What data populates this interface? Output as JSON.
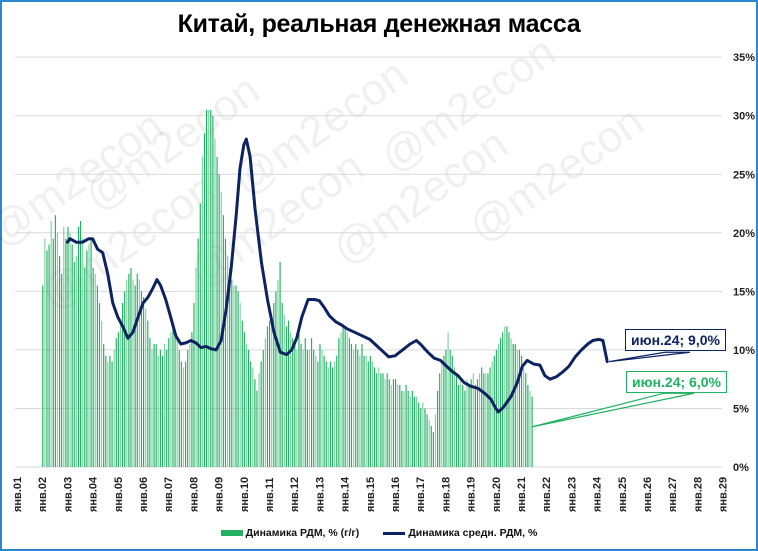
{
  "title": "Китай, реальная денежная масса",
  "watermark": "@m2econ",
  "colors": {
    "bars": "#22b163",
    "bars_light": "#7fd3a2",
    "line": "#0d2261",
    "grid": "#d9d9d9",
    "border": "#2f86cf"
  },
  "legend": {
    "bars_label": "Динамика РДМ, % (г/г)",
    "line_label": "Динамика средн. РДМ, %"
  },
  "callouts": {
    "line": "июн.24; 9,0%",
    "bars": "июн.24; 6,0%"
  },
  "chart_data": {
    "type": "bar+line",
    "title": "Китай, реальная денежная масса",
    "xlabel": "",
    "ylabel": "",
    "ylim": [
      0,
      35
    ],
    "y_ticks": [
      "0%",
      "5%",
      "10%",
      "15%",
      "20%",
      "25%",
      "30%",
      "35%"
    ],
    "x_ticks": [
      "янв.01",
      "янв.02",
      "янв.03",
      "янв.04",
      "янв.05",
      "янв.06",
      "янв.07",
      "янв.08",
      "янв.09",
      "янв.10",
      "янв.11",
      "янв.12",
      "янв.13",
      "янв.14",
      "янв.15",
      "янв.16",
      "янв.17",
      "янв.18",
      "янв.19",
      "янв.20",
      "янв.21",
      "янв.22",
      "янв.23",
      "янв.24",
      "янв.25",
      "янв.26",
      "янв.27",
      "янв.28",
      "янв.29"
    ],
    "grid": true,
    "legend_position": "bottom",
    "annotations": [
      {
        "series": "Динамика средн. РДМ, %",
        "date": "июн.24",
        "value": 9.0
      },
      {
        "series": "Динамика РДМ, % (г/г)",
        "date": "июн.24",
        "value": 6.0
      }
    ],
    "series": [
      {
        "name": "Динамика РДМ, % (г/г)",
        "type": "bar",
        "start": "янв.02",
        "frequency": "monthly",
        "values": [
          15.5,
          19.5,
          18.5,
          19.0,
          21.0,
          19.5,
          21.5,
          20.0,
          18.0,
          16.5,
          20.5,
          19.5,
          20.5,
          20.0,
          19.0,
          17.5,
          18.0,
          20.5,
          21.0,
          19.5,
          17.0,
          18.5,
          19.0,
          19.5,
          17.0,
          16.5,
          15.5,
          14.0,
          12.5,
          10.5,
          9.5,
          9.0,
          9.5,
          9.0,
          10.0,
          11.0,
          11.5,
          12.5,
          14.0,
          15.0,
          16.0,
          16.5,
          17.0,
          16.0,
          15.5,
          16.5,
          16.0,
          15.0,
          14.5,
          13.5,
          12.5,
          11.0,
          10.0,
          10.5,
          10.5,
          9.5,
          10.0,
          9.5,
          10.5,
          10.0,
          11.0,
          11.5,
          12.0,
          11.5,
          11.0,
          10.0,
          9.0,
          8.5,
          9.0,
          10.0,
          10.5,
          11.5,
          14.0,
          17.0,
          19.5,
          22.5,
          26.5,
          28.5,
          30.5,
          30.5,
          30.5,
          30.0,
          28.0,
          26.5,
          25.0,
          23.5,
          21.5,
          19.5,
          18.0,
          17.0,
          16.0,
          15.5,
          15.5,
          15.0,
          14.0,
          12.5,
          11.5,
          10.5,
          10.0,
          9.0,
          8.5,
          7.5,
          6.5,
          8.0,
          9.0,
          10.0,
          11.0,
          12.0,
          12.5,
          13.0,
          14.0,
          15.0,
          16.0,
          17.5,
          14.0,
          13.0,
          12.0,
          12.5,
          11.5,
          11.0,
          10.5,
          10.0,
          11.5,
          10.5,
          10.0,
          11.0,
          10.0,
          10.0,
          11.0,
          10.0,
          9.5,
          9.0,
          10.5,
          10.0,
          9.5,
          9.0,
          8.5,
          9.0,
          8.5,
          9.0,
          9.5,
          11.0,
          11.5,
          12.0,
          12.0,
          11.5,
          11.0,
          10.5,
          10.0,
          10.5,
          10.0,
          9.5,
          10.5,
          9.5,
          9.5,
          9.0,
          9.5,
          9.0,
          8.5,
          8.0,
          8.5,
          8.0,
          8.0,
          7.5,
          8.0,
          7.5,
          7.0,
          7.5,
          7.5,
          7.0,
          7.0,
          6.5,
          6.5,
          7.0,
          6.5,
          6.0,
          6.5,
          6.0,
          6.0,
          5.5,
          5.0,
          5.5,
          5.0,
          4.5,
          4.0,
          3.5,
          3.0,
          4.5,
          6.5,
          8.0,
          9.0,
          9.5,
          10.0,
          11.5,
          10.0,
          9.5,
          8.5,
          8.0,
          7.0,
          7.5,
          7.0,
          6.5,
          7.5,
          7.0,
          7.5,
          8.0,
          7.0,
          7.5,
          8.0,
          8.5,
          8.0,
          8.0,
          8.0,
          8.5,
          9.0,
          9.5,
          10.0,
          10.5,
          11.0,
          11.5,
          12.0,
          12.0,
          11.5,
          11.0,
          10.5,
          10.5,
          10.0,
          10.0,
          9.5,
          8.5,
          8.0,
          7.0,
          6.5,
          6.0
        ],
        "last_value": 6.0
      },
      {
        "name": "Динамика средн. РДМ, %",
        "type": "line",
        "points": [
          [
            2003.0,
            19.2
          ],
          [
            2003.1,
            19.5
          ],
          [
            2003.35,
            19.2
          ],
          [
            2003.6,
            19.2
          ],
          [
            2003.85,
            19.5
          ],
          [
            2004.0,
            19.5
          ],
          [
            2004.2,
            18.6
          ],
          [
            2004.4,
            18.3
          ],
          [
            2004.6,
            16.5
          ],
          [
            2004.8,
            14.0
          ],
          [
            2005.0,
            12.8
          ],
          [
            2005.2,
            12.0
          ],
          [
            2005.4,
            11.0
          ],
          [
            2005.6,
            11.5
          ],
          [
            2005.8,
            12.8
          ],
          [
            2006.0,
            14.0
          ],
          [
            2006.2,
            14.5
          ],
          [
            2006.4,
            15.3
          ],
          [
            2006.55,
            16.0
          ],
          [
            2006.7,
            15.5
          ],
          [
            2006.9,
            14.3
          ],
          [
            2007.1,
            12.8
          ],
          [
            2007.3,
            11.2
          ],
          [
            2007.5,
            10.5
          ],
          [
            2007.7,
            10.6
          ],
          [
            2007.9,
            10.8
          ],
          [
            2008.1,
            10.6
          ],
          [
            2008.3,
            10.2
          ],
          [
            2008.5,
            10.3
          ],
          [
            2008.7,
            10.1
          ],
          [
            2008.9,
            10.0
          ],
          [
            2009.1,
            10.8
          ],
          [
            2009.3,
            13.5
          ],
          [
            2009.5,
            17.0
          ],
          [
            2009.7,
            21.5
          ],
          [
            2009.85,
            25.5
          ],
          [
            2010.0,
            27.5
          ],
          [
            2010.1,
            28.0
          ],
          [
            2010.25,
            26.5
          ],
          [
            2010.45,
            22.0
          ],
          [
            2010.7,
            17.5
          ],
          [
            2010.95,
            14.2
          ],
          [
            2011.2,
            11.5
          ],
          [
            2011.45,
            9.8
          ],
          [
            2011.7,
            9.6
          ],
          [
            2011.9,
            10.0
          ],
          [
            2012.1,
            11.0
          ],
          [
            2012.3,
            12.8
          ],
          [
            2012.55,
            14.3
          ],
          [
            2012.8,
            14.3
          ],
          [
            2013.0,
            14.2
          ],
          [
            2013.2,
            13.6
          ],
          [
            2013.4,
            12.9
          ],
          [
            2013.65,
            12.4
          ],
          [
            2013.9,
            12.1
          ],
          [
            2014.1,
            11.8
          ],
          [
            2014.4,
            11.5
          ],
          [
            2014.7,
            11.2
          ],
          [
            2015.0,
            10.9
          ],
          [
            2015.3,
            10.3
          ],
          [
            2015.55,
            9.8
          ],
          [
            2015.75,
            9.4
          ],
          [
            2016.0,
            9.5
          ],
          [
            2016.3,
            10.0
          ],
          [
            2016.6,
            10.5
          ],
          [
            2016.85,
            10.8
          ],
          [
            2017.05,
            10.4
          ],
          [
            2017.3,
            9.8
          ],
          [
            2017.55,
            9.3
          ],
          [
            2017.8,
            9.1
          ],
          [
            2018.0,
            8.7
          ],
          [
            2018.25,
            8.2
          ],
          [
            2018.5,
            7.8
          ],
          [
            2018.75,
            7.2
          ],
          [
            2019.0,
            6.9
          ],
          [
            2019.3,
            6.7
          ],
          [
            2019.55,
            6.3
          ],
          [
            2019.8,
            5.8
          ],
          [
            2020.0,
            5.0
          ],
          [
            2020.1,
            4.7
          ],
          [
            2020.3,
            5.1
          ],
          [
            2020.6,
            6.0
          ],
          [
            2020.85,
            7.2
          ],
          [
            2021.05,
            8.6
          ],
          [
            2021.25,
            9.1
          ],
          [
            2021.5,
            8.8
          ],
          [
            2021.75,
            8.7
          ],
          [
            2021.95,
            7.8
          ],
          [
            2022.15,
            7.5
          ],
          [
            2022.4,
            7.7
          ],
          [
            2022.65,
            8.1
          ],
          [
            2022.9,
            8.6
          ],
          [
            2023.15,
            9.4
          ],
          [
            2023.4,
            10.0
          ],
          [
            2023.65,
            10.5
          ],
          [
            2023.85,
            10.8
          ],
          [
            2024.1,
            10.9
          ],
          [
            2024.25,
            10.8
          ],
          [
            2024.42,
            9.0
          ]
        ],
        "last_value": 9.0
      }
    ]
  }
}
